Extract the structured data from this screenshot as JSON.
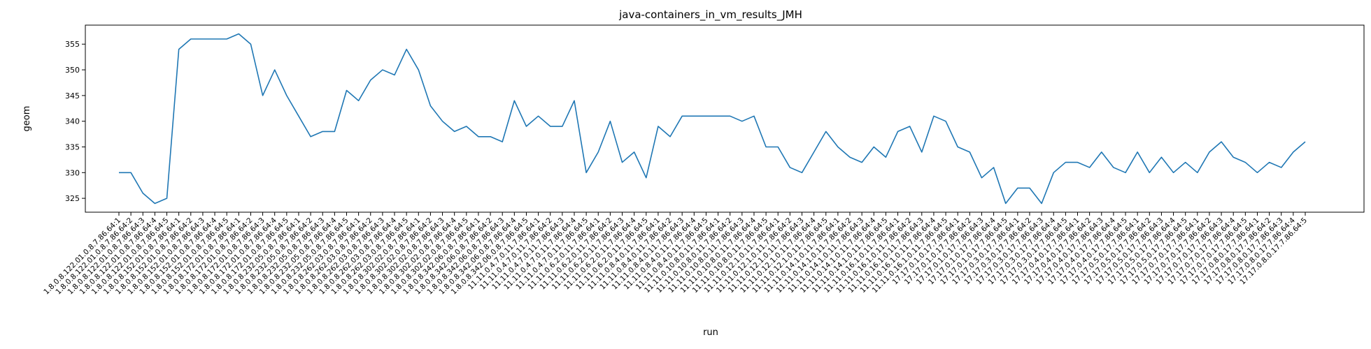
{
  "chart_data": {
    "type": "line",
    "title": "java-containers_in_vm_results_JMH",
    "xlabel": "run",
    "ylabel": "geom",
    "ylim": [
      322.3,
      358.7
    ],
    "yticks": [
      325,
      330,
      335,
      340,
      345,
      350,
      355
    ],
    "grid": false,
    "legend": "none",
    "colors": {
      "line": "#1f77b4"
    },
    "categories": [
      "1.8.0.8.122.01.0.8.7.86.64:1",
      "1.8.0.8.122.01.0.8.7.86.64:2",
      "1.8.0.8.122.01.0.8.7.86.64:3",
      "1.8.0.8.122.01.0.8.7.86.64:4",
      "1.8.0.8.122.01.0.8.7.86.64:5",
      "1.8.0.8.152.01.0.8.7.86.64:1",
      "1.8.0.8.152.01.0.8.7.86.64:2",
      "1.8.0.8.152.01.0.8.7.86.64:3",
      "1.8.0.8.152.01.0.8.7.86.64:4",
      "1.8.0.8.152.01.0.8.7.86.64:5",
      "1.8.0.8.172.01.0.8.7.86.64:1",
      "1.8.0.8.172.01.0.8.7.86.64:2",
      "1.8.0.8.172.01.0.8.7.86.64:3",
      "1.8.0.8.172.01.0.8.7.86.64:4",
      "1.8.0.8.172.01.0.8.7.86.64:5",
      "1.8.0.8.232.05.0.8.7.86.64:1",
      "1.8.0.8.232.05.0.8.7.86.64:2",
      "1.8.0.8.232.05.0.8.7.86.64:3",
      "1.8.0.8.232.05.0.8.7.86.64:4",
      "1.8.0.8.232.05.0.8.7.86.64:5",
      "1.8.0.8.262.03.0.8.7.86.64:1",
      "1.8.0.8.262.03.0.8.7.86.64:2",
      "1.8.0.8.262.03.0.8.7.86.64:3",
      "1.8.0.8.262.03.0.8.7.86.64:4",
      "1.8.0.8.262.03.0.8.7.86.64:5",
      "1.8.0.8.302.02.0.8.7.86.64:1",
      "1.8.0.8.302.02.0.8.7.86.64:2",
      "1.8.0.8.302.02.0.8.7.86.64:3",
      "1.8.0.8.302.02.0.8.7.86.64:4",
      "1.8.0.8.302.02.0.8.7.86.64:5",
      "1.8.0.8.342.06.0.8.7.86.64:1",
      "1.8.0.8.342.06.0.8.7.86.64:2",
      "1.8.0.8.342.06.0.8.7.86.64:3",
      "1.8.0.8.342.06.0.8.7.86.64:4",
      "1.8.0.8.342.06.0.8.7.86.64:5",
      "11.11.0.4.7.0.11.7.86.64:1",
      "11.11.0.4.7.0.11.7.86.64:2",
      "11.11.0.4.7.0.11.7.86.64:3",
      "11.11.0.4.7.0.11.7.86.64:4",
      "11.11.0.4.7.0.11.7.86.64:5",
      "11.11.0.6.2.0.11.7.86.64:1",
      "11.11.0.6.2.0.11.7.86.64:2",
      "11.11.0.6.2.0.11.7.86.64:3",
      "11.11.0.6.2.0.11.7.86.64:4",
      "11.11.0.6.2.0.11.7.86.64:5",
      "11.11.0.8.4.0.11.7.86.64:1",
      "11.11.0.8.4.0.11.7.86.64:2",
      "11.11.0.8.4.0.11.7.86.64:3",
      "11.11.0.8.4.0.11.7.86.64:4",
      "11.11.0.8.4.0.11.7.86.64:5",
      "11.11.0.10.8.0.11.7.86.64:1",
      "11.11.0.10.8.0.11.7.86.64:2",
      "11.11.0.10.8.0.11.7.86.64:3",
      "11.11.0.10.8.0.11.7.86.64:4",
      "11.11.0.10.8.0.11.7.86.64:5",
      "11.11.0.12.1.0.11.7.86.64:1",
      "11.11.0.12.1.0.11.7.86.64:2",
      "11.11.0.12.1.0.11.7.86.64:3",
      "11.11.0.12.1.0.11.7.86.64:4",
      "11.11.0.12.1.0.11.7.86.64:5",
      "11.11.0.14.1.0.11.7.86.64:1",
      "11.11.0.14.1.0.11.7.86.64:2",
      "11.11.0.14.1.0.11.7.86.64:3",
      "11.11.0.14.1.0.11.7.86.64:4",
      "11.11.0.14.1.0.11.7.86.64:5",
      "11.11.0.16.1.0.11.7.86.64:1",
      "11.11.0.16.1.0.11.7.86.64:2",
      "11.11.0.16.1.0.11.7.86.64:3",
      "11.11.0.16.1.0.11.7.86.64:4",
      "11.11.0.16.1.0.11.7.86.64:5",
      "17.17.0.1.0.17.7.86.64:1",
      "17.17.0.1.0.17.7.86.64:2",
      "17.17.0.1.0.17.7.86.64:3",
      "17.17.0.1.0.17.7.86.64:4",
      "17.17.0.1.0.17.7.86.64:5",
      "17.17.0.3.0.17.7.86.64:1",
      "17.17.0.3.0.17.7.86.64:2",
      "17.17.0.3.0.17.7.86.64:3",
      "17.17.0.3.0.17.7.86.64:4",
      "17.17.0.3.0.17.7.86.64:5",
      "17.17.0.4.0.17.7.86.64:1",
      "17.17.0.4.0.17.7.86.64:2",
      "17.17.0.4.0.17.7.86.64:3",
      "17.17.0.4.0.17.7.86.64:4",
      "17.17.0.4.0.17.7.86.64:5",
      "17.17.0.5.0.17.7.86.64:1",
      "17.17.0.5.0.17.7.86.64:2",
      "17.17.0.5.0.17.7.86.64:3",
      "17.17.0.5.0.17.7.86.64:4",
      "17.17.0.5.0.17.7.86.64:5",
      "17.17.0.7.0.17.7.86.64:1",
      "17.17.0.7.0.17.7.86.64:2",
      "17.17.0.7.0.17.7.86.64:3",
      "17.17.0.7.0.17.7.86.64:4",
      "17.17.0.7.0.17.7.86.64:5",
      "17.17.0.8.0.17.7.86.64:1",
      "17.17.0.8.0.17.7.86.64:2",
      "17.17.0.8.0.17.7.86.64:3",
      "17.17.0.8.0.17.7.86.64:4",
      "17.17.0.8.0.17.7.86.64:5"
    ],
    "values": [
      330,
      330,
      326,
      324,
      325,
      354,
      356,
      356,
      356,
      356,
      357,
      355,
      345,
      350,
      345,
      341,
      337,
      338,
      338,
      346,
      344,
      348,
      350,
      349,
      354,
      350,
      343,
      340,
      338,
      339,
      337,
      337,
      336,
      344,
      339,
      341,
      339,
      339,
      344,
      330,
      334,
      340,
      332,
      334,
      329,
      339,
      337,
      341,
      341,
      341,
      341,
      341,
      340,
      341,
      335,
      335,
      331,
      330,
      334,
      338,
      335,
      333,
      332,
      335,
      333,
      338,
      339,
      334,
      341,
      340,
      335,
      334,
      329,
      331,
      324,
      327,
      327,
      324,
      330,
      332,
      332,
      331,
      334,
      331,
      330,
      334,
      330,
      333,
      330,
      332,
      330,
      334,
      336,
      333,
      332,
      330,
      332,
      331,
      334,
      336
    ]
  }
}
